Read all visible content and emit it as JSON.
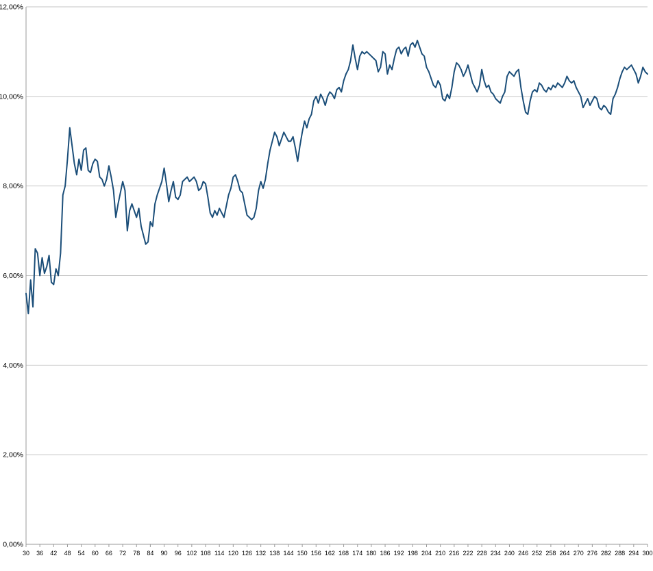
{
  "chart_data": {
    "type": "line",
    "title": "",
    "xlabel": "",
    "ylabel": "",
    "legend": "none",
    "grid": "horizontal",
    "ylim": [
      0,
      12
    ],
    "y_ticks": [
      {
        "value": 0,
        "label": "0,00%"
      },
      {
        "value": 2,
        "label": "2,00%"
      },
      {
        "value": 4,
        "label": "4,00%"
      },
      {
        "value": 6,
        "label": "6,00%"
      },
      {
        "value": 8,
        "label": "8,00%"
      },
      {
        "value": 10,
        "label": "10,00%"
      },
      {
        "value": 12,
        "label": "12,00%"
      }
    ],
    "x_min": 30,
    "x_max": 300,
    "x_start": 30,
    "x_step": 1,
    "x_ticks": [
      30,
      36,
      42,
      48,
      54,
      60,
      66,
      72,
      78,
      84,
      90,
      96,
      102,
      108,
      114,
      120,
      126,
      132,
      138,
      144,
      150,
      156,
      162,
      168,
      174,
      180,
      186,
      192,
      198,
      204,
      210,
      216,
      222,
      228,
      234,
      240,
      246,
      252,
      258,
      264,
      270,
      276,
      282,
      288,
      294,
      300
    ],
    "series": [
      {
        "name": "series-1",
        "color": "#1b4e79",
        "values": [
          5.6,
          5.15,
          5.9,
          5.3,
          6.6,
          6.5,
          6.0,
          6.4,
          6.05,
          6.2,
          6.45,
          5.85,
          5.8,
          6.15,
          6.0,
          6.5,
          7.8,
          8.0,
          8.6,
          9.3,
          8.9,
          8.5,
          8.25,
          8.6,
          8.35,
          8.8,
          8.85,
          8.35,
          8.3,
          8.5,
          8.6,
          8.55,
          8.2,
          8.15,
          8.0,
          8.15,
          8.45,
          8.2,
          7.9,
          7.3,
          7.6,
          7.85,
          8.1,
          7.9,
          7.0,
          7.45,
          7.6,
          7.45,
          7.3,
          7.5,
          7.1,
          6.9,
          6.7,
          6.75,
          7.2,
          7.1,
          7.6,
          7.8,
          7.95,
          8.1,
          8.4,
          8.05,
          7.65,
          7.9,
          8.1,
          7.75,
          7.7,
          7.8,
          8.1,
          8.15,
          8.2,
          8.1,
          8.15,
          8.2,
          8.1,
          7.9,
          7.95,
          8.1,
          8.05,
          7.75,
          7.4,
          7.3,
          7.45,
          7.35,
          7.5,
          7.4,
          7.3,
          7.55,
          7.8,
          7.95,
          8.2,
          8.25,
          8.1,
          7.9,
          7.85,
          7.6,
          7.35,
          7.3,
          7.25,
          7.3,
          7.5,
          7.9,
          8.1,
          7.95,
          8.15,
          8.5,
          8.8,
          9.0,
          9.2,
          9.1,
          8.9,
          9.05,
          9.2,
          9.1,
          9.0,
          9.0,
          9.1,
          8.85,
          8.55,
          8.9,
          9.2,
          9.45,
          9.3,
          9.5,
          9.6,
          9.9,
          10.0,
          9.85,
          10.05,
          9.95,
          9.8,
          10.0,
          10.1,
          10.05,
          9.95,
          10.15,
          10.2,
          10.1,
          10.35,
          10.5,
          10.6,
          10.8,
          11.15,
          10.85,
          10.6,
          10.9,
          11.0,
          10.95,
          11.0,
          10.95,
          10.9,
          10.85,
          10.8,
          10.55,
          10.65,
          11.0,
          10.95,
          10.5,
          10.7,
          10.6,
          10.85,
          11.05,
          11.1,
          10.95,
          11.05,
          11.1,
          10.9,
          11.15,
          11.2,
          11.1,
          11.25,
          11.1,
          10.95,
          10.9,
          10.65,
          10.55,
          10.4,
          10.25,
          10.2,
          10.35,
          10.25,
          9.95,
          9.9,
          10.05,
          9.95,
          10.2,
          10.55,
          10.75,
          10.7,
          10.6,
          10.45,
          10.55,
          10.7,
          10.5,
          10.3,
          10.2,
          10.1,
          10.25,
          10.6,
          10.35,
          10.2,
          10.25,
          10.1,
          10.05,
          9.95,
          9.9,
          9.85,
          10.0,
          10.1,
          10.45,
          10.55,
          10.5,
          10.45,
          10.55,
          10.6,
          10.2,
          9.9,
          9.65,
          9.6,
          9.9,
          10.1,
          10.15,
          10.1,
          10.3,
          10.25,
          10.15,
          10.1,
          10.2,
          10.15,
          10.25,
          10.2,
          10.3,
          10.25,
          10.2,
          10.3,
          10.45,
          10.35,
          10.3,
          10.35,
          10.2,
          10.1,
          10.0,
          9.75,
          9.85,
          9.95,
          9.8,
          9.9,
          10.0,
          9.95,
          9.75,
          9.7,
          9.8,
          9.75,
          9.65,
          9.6,
          9.95,
          10.05,
          10.2,
          10.4,
          10.55,
          10.65,
          10.6,
          10.65,
          10.7,
          10.6,
          10.5,
          10.3,
          10.45,
          10.65,
          10.55,
          10.5
        ]
      }
    ]
  },
  "colors": {
    "background": "#ffffff",
    "line": "#1b4e79",
    "gridline": "#c6c6c6",
    "axis": "#9a9a9a",
    "tick_text": "#000000"
  }
}
